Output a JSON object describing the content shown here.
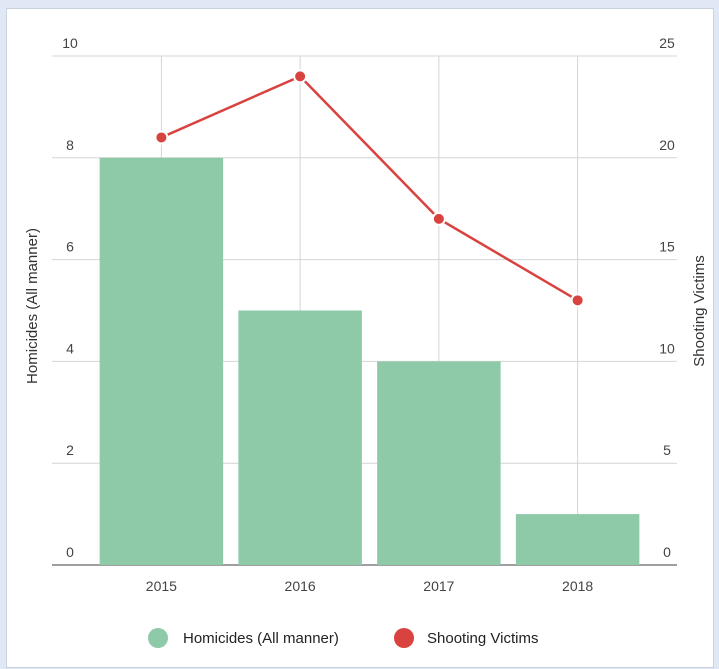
{
  "chart_data": {
    "type": "bar",
    "categories": [
      "2015",
      "2016",
      "2017",
      "2018"
    ],
    "series": [
      {
        "name": "Homicides (All manner)",
        "type": "bar",
        "axis": "left",
        "values": [
          8,
          5,
          4,
          1
        ],
        "color": "#8ec9a8"
      },
      {
        "name": "Shooting Victims",
        "type": "line",
        "axis": "right",
        "values": [
          21,
          24,
          17,
          13
        ],
        "color": "#d9433f"
      }
    ],
    "ylabel": "Homicides (All manner)",
    "y2label": "Shooting Victims",
    "ylim": [
      0,
      10
    ],
    "y2lim": [
      0,
      25
    ],
    "yticks": [
      "0",
      "2",
      "4",
      "6",
      "8",
      "10"
    ],
    "y2ticks": [
      "0",
      "5",
      "10",
      "15",
      "20",
      "25"
    ],
    "grid": true,
    "legend": "bottom"
  }
}
